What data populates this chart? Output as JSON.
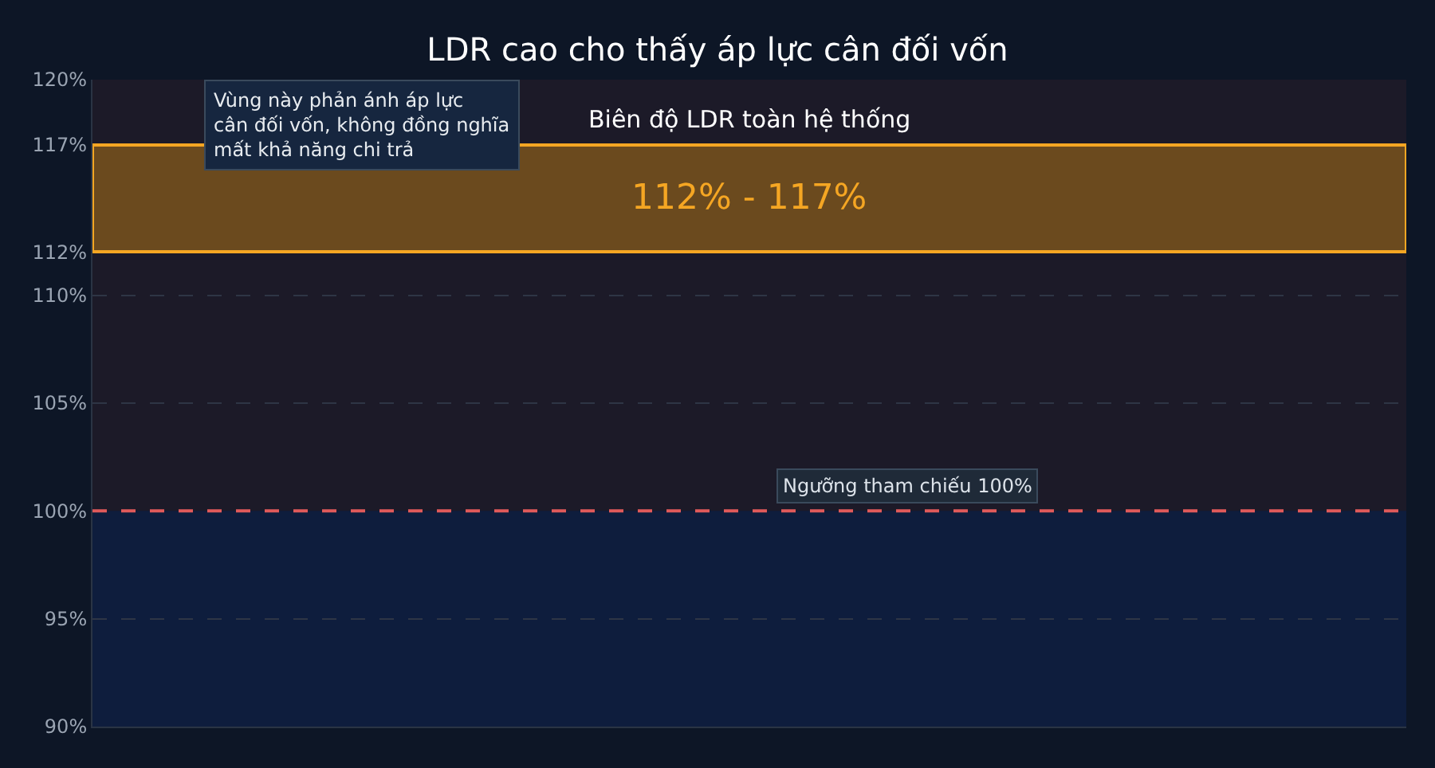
{
  "chart_data": {
    "type": "bar",
    "title": "LDR cao cho thấy áp lực cân đối vốn",
    "categories": [
      null
    ],
    "base": [
      112
    ],
    "values": [
      5
    ],
    "color": "#6b4a1e",
    "ylim": [
      90,
      120
    ],
    "yticks": [
      {
        "value": 90,
        "label": "90%"
      },
      {
        "value": 95,
        "label": "95%"
      },
      {
        "value": 100,
        "label": "100%"
      },
      {
        "value": 105,
        "label": "105%"
      },
      {
        "value": 110,
        "label": "110%"
      },
      {
        "value": 112,
        "label": "112%"
      },
      {
        "value": 117,
        "label": "117%"
      },
      {
        "value": 120,
        "label": "120%"
      }
    ],
    "grid": "y",
    "bands": [
      {
        "axis": "y",
        "from": 90,
        "to": 100,
        "label": null,
        "color": "#0e1d3d"
      }
    ],
    "ref_lines": [
      {
        "axis": "y",
        "value": 100,
        "label": "Ngưỡng tham chiếu 100%",
        "color": "#e05a5a",
        "line_style": "dashed"
      }
    ],
    "annotations": [
      "Biên độ LDR toàn hệ thống",
      "112% - 117%",
      "Vùng này phản ánh áp lực\ncân đối vốn, không đồng nghĩa\nmất khả năng chi trả"
    ]
  }
}
